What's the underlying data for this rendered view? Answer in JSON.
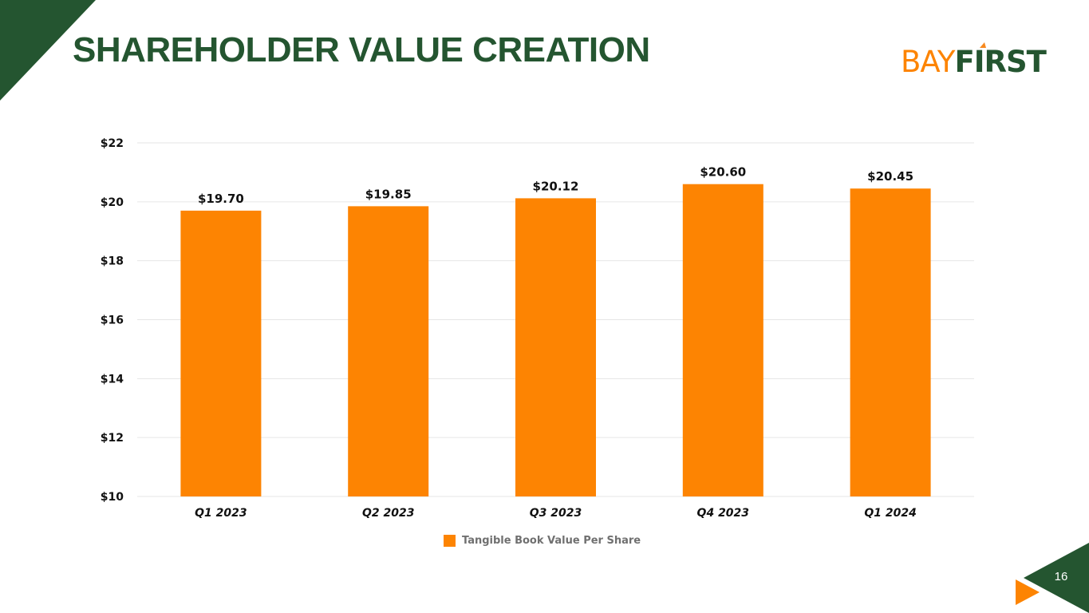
{
  "slide": {
    "title": "SHAREHOLDER VALUE CREATION",
    "page_number": "16"
  },
  "logo": {
    "part_a": "BAY",
    "part_b": "FIRST"
  },
  "colors": {
    "brand_green": "#245530",
    "accent_orange": "#fd8402",
    "gridline": "#e6e6e6",
    "axis_text": "#111111",
    "legend_text": "#707070"
  },
  "chart_data": {
    "type": "bar",
    "categories": [
      "Q1 2023",
      "Q2 2023",
      "Q3 2023",
      "Q4 2023",
      "Q1 2024"
    ],
    "series": [
      {
        "name": "Tangible Book Value Per Share",
        "values": [
          19.7,
          19.85,
          20.12,
          20.6,
          20.45
        ],
        "data_labels": [
          "$19.70",
          "$19.85",
          "$20.12",
          "$20.60",
          "$20.45"
        ]
      }
    ],
    "ylim": [
      10,
      22
    ],
    "y_ticks": [
      10,
      12,
      14,
      16,
      18,
      20,
      22
    ],
    "y_tick_labels": [
      "$10",
      "$12",
      "$14",
      "$16",
      "$18",
      "$20",
      "$22"
    ],
    "grid": true,
    "legend": "bottom"
  }
}
